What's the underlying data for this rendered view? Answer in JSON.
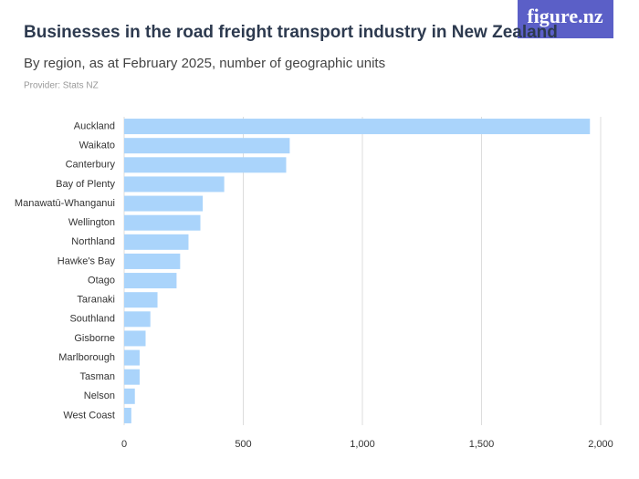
{
  "logo": "figure.nz",
  "chart_data": {
    "type": "bar",
    "orientation": "horizontal",
    "title": "Businesses in the road freight transport industry in New Zealand",
    "subtitle": "By region, as at February 2025, number of geographic units",
    "provider": "Provider: Stats NZ",
    "categories": [
      "Auckland",
      "Waikato",
      "Canterbury",
      "Bay of Plenty",
      "Manawatū-Whanganui",
      "Wellington",
      "Northland",
      "Hawke's Bay",
      "Otago",
      "Taranaki",
      "Southland",
      "Gisborne",
      "Marlborough",
      "Tasman",
      "Nelson",
      "West Coast"
    ],
    "values": [
      1955,
      695,
      680,
      420,
      330,
      320,
      270,
      235,
      220,
      140,
      110,
      90,
      65,
      65,
      45,
      30
    ],
    "color": "#aad4fb",
    "xlim": [
      0,
      2000
    ],
    "xticks": [
      0,
      500,
      {
        "value": 1000,
        "label": "1,000"
      },
      {
        "value": 1500,
        "label": "1,500"
      },
      {
        "value": 2000,
        "label": "2,000"
      }
    ],
    "grid": true
  }
}
